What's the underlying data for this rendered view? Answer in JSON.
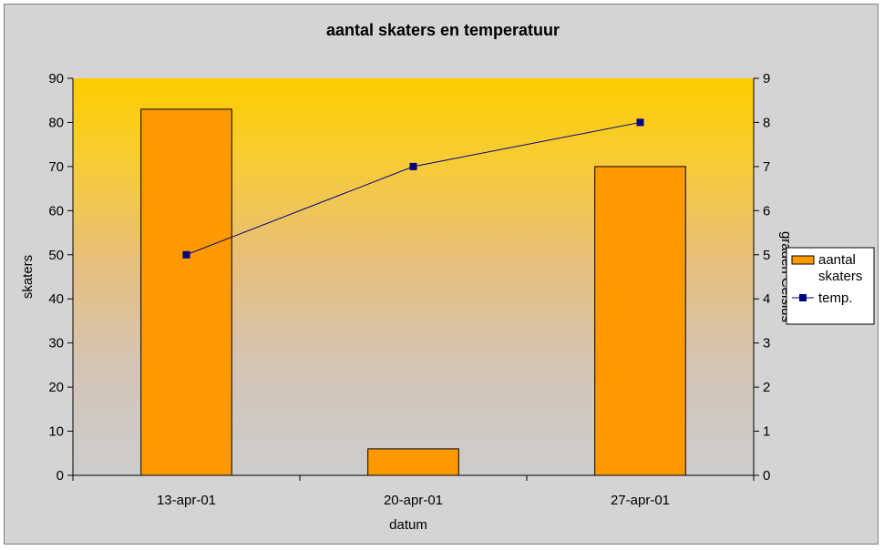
{
  "chart_data": {
    "type": "bar+line",
    "title": "aantal skaters en temperatuur",
    "xlabel": "datum",
    "ylabel": "skaters",
    "y2label": "graden Celsius",
    "categories": [
      "13-apr-01",
      "20-apr-01",
      "27-apr-01"
    ],
    "series": [
      {
        "name": "aantal skaters",
        "type": "bar",
        "axis": "left",
        "values": [
          83,
          6,
          70
        ],
        "color": "#ff9900"
      },
      {
        "name": "temp.",
        "type": "line",
        "axis": "right",
        "values": [
          5,
          7,
          8
        ],
        "color": "#000080"
      }
    ],
    "ylim": [
      0,
      90
    ],
    "yticks": [
      0,
      10,
      20,
      30,
      40,
      50,
      60,
      70,
      80,
      90
    ],
    "y2lim": [
      0,
      9
    ],
    "y2ticks": [
      0,
      1,
      2,
      3,
      4,
      5,
      6,
      7,
      8,
      9
    ],
    "grid": false,
    "legend": "right",
    "plot_background": "gradient gold-to-gray"
  }
}
